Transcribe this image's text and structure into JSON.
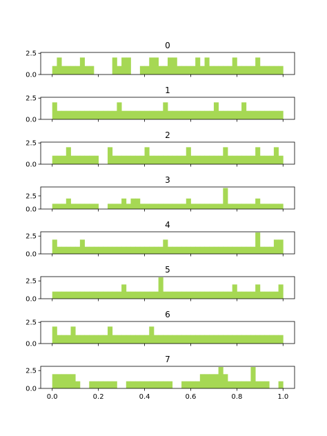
{
  "chart_data": {
    "type": "histogram",
    "layout": "8 stacked subplots sharing x-axis",
    "bar_color": "#a6d854",
    "bins": 50,
    "bin_range": [
      0.0,
      1.0
    ],
    "xlim": [
      -0.05,
      1.05
    ],
    "x_ticks": [
      0.0,
      0.2,
      0.4,
      0.6,
      0.8,
      1.0
    ],
    "x_tick_labels": [
      "0.0",
      "0.2",
      "0.4",
      "0.6",
      "0.8",
      "1.0"
    ],
    "grid": false,
    "subplots": [
      {
        "title": "0",
        "ylim": [
          0,
          2.6
        ],
        "y_ticks": [
          0.0,
          2.5
        ],
        "y_tick_labels": [
          "0.0",
          "2.5"
        ],
        "counts": [
          1,
          2,
          1,
          1,
          1,
          1,
          2,
          1,
          1,
          0,
          0,
          0,
          0,
          2,
          1,
          2,
          2,
          0,
          0,
          1,
          1,
          2,
          2,
          1,
          1,
          2,
          2,
          1,
          1,
          1,
          1,
          2,
          1,
          2,
          1,
          1,
          1,
          1,
          1,
          2,
          1,
          1,
          1,
          1,
          2,
          1,
          1,
          1,
          1,
          1
        ]
      },
      {
        "title": "1",
        "ylim": [
          0,
          2.6
        ],
        "y_ticks": [
          0.0,
          2.5
        ],
        "y_tick_labels": [
          "0.0",
          "2.5"
        ],
        "counts": [
          2,
          1,
          1,
          1,
          1,
          1,
          1,
          1,
          1,
          1,
          1,
          1,
          1,
          1,
          2,
          1,
          1,
          1,
          1,
          1,
          1,
          1,
          1,
          1,
          2,
          1,
          1,
          1,
          1,
          1,
          1,
          1,
          1,
          1,
          1,
          2,
          1,
          1,
          1,
          1,
          1,
          2,
          1,
          1,
          1,
          1,
          1,
          1,
          1,
          1
        ]
      },
      {
        "title": "2",
        "ylim": [
          0,
          2.6
        ],
        "y_ticks": [
          0.0,
          2.5
        ],
        "y_tick_labels": [
          "0.0",
          "2.5"
        ],
        "counts": [
          1,
          1,
          1,
          2,
          1,
          1,
          1,
          1,
          1,
          1,
          0,
          0,
          2,
          1,
          1,
          1,
          1,
          1,
          1,
          1,
          2,
          1,
          1,
          1,
          1,
          1,
          1,
          1,
          1,
          2,
          1,
          1,
          1,
          1,
          1,
          1,
          1,
          2,
          1,
          1,
          1,
          1,
          1,
          1,
          2,
          1,
          1,
          1,
          2,
          1
        ]
      },
      {
        "title": "3",
        "ylim": [
          0,
          4.2
        ],
        "y_ticks": [
          0.0,
          2.5
        ],
        "y_tick_labels": [
          "0.0",
          "2.5"
        ],
        "counts": [
          1,
          1,
          1,
          2,
          1,
          1,
          1,
          1,
          1,
          1,
          0,
          0,
          1,
          1,
          1,
          2,
          1,
          2,
          2,
          1,
          1,
          1,
          1,
          1,
          1,
          1,
          1,
          1,
          1,
          2,
          1,
          1,
          1,
          1,
          1,
          1,
          1,
          4,
          1,
          1,
          1,
          1,
          1,
          1,
          2,
          1,
          1,
          1,
          1,
          1
        ]
      },
      {
        "title": "4",
        "ylim": [
          0,
          3.1
        ],
        "y_ticks": [
          0.0,
          2.5
        ],
        "y_tick_labels": [
          "0.0",
          "2.5"
        ],
        "counts": [
          2,
          1,
          1,
          1,
          1,
          1,
          2,
          1,
          1,
          1,
          1,
          1,
          1,
          1,
          1,
          1,
          1,
          1,
          1,
          1,
          1,
          1,
          1,
          1,
          2,
          1,
          1,
          1,
          1,
          1,
          1,
          1,
          1,
          1,
          1,
          1,
          1,
          1,
          1,
          1,
          1,
          1,
          1,
          1,
          3,
          1,
          1,
          1,
          2,
          2
        ]
      },
      {
        "title": "5",
        "ylim": [
          0,
          3.1
        ],
        "y_ticks": [
          0.0,
          2.5
        ],
        "y_tick_labels": [
          "0.0",
          "2.5"
        ],
        "counts": [
          1,
          1,
          1,
          1,
          1,
          1,
          1,
          1,
          1,
          1,
          1,
          1,
          1,
          1,
          1,
          2,
          1,
          1,
          1,
          1,
          1,
          1,
          1,
          3,
          1,
          1,
          1,
          1,
          1,
          1,
          1,
          1,
          1,
          1,
          1,
          1,
          1,
          1,
          1,
          2,
          1,
          1,
          1,
          1,
          2,
          1,
          1,
          1,
          1,
          2
        ]
      },
      {
        "title": "6",
        "ylim": [
          0,
          2.6
        ],
        "y_ticks": [
          0.0,
          2.5
        ],
        "y_tick_labels": [
          "0.0",
          "2.5"
        ],
        "counts": [
          2,
          1,
          1,
          1,
          2,
          1,
          1,
          1,
          1,
          1,
          1,
          1,
          2,
          1,
          1,
          1,
          1,
          1,
          1,
          1,
          1,
          2,
          1,
          1,
          1,
          1,
          1,
          1,
          1,
          1,
          1,
          1,
          1,
          1,
          1,
          1,
          1,
          1,
          1,
          1,
          1,
          1,
          1,
          1,
          1,
          1,
          1,
          1,
          1,
          1
        ]
      },
      {
        "title": "7",
        "ylim": [
          0,
          3.1
        ],
        "y_ticks": [
          0.0,
          2.5
        ],
        "y_tick_labels": [
          "0.0",
          "2.5"
        ],
        "counts": [
          2,
          2,
          2,
          2,
          2,
          1,
          0,
          0,
          1,
          1,
          1,
          1,
          1,
          1,
          0,
          0,
          1,
          1,
          1,
          1,
          1,
          1,
          1,
          1,
          1,
          1,
          0,
          0,
          1,
          1,
          1,
          1,
          2,
          2,
          2,
          2,
          3,
          2,
          1,
          1,
          1,
          1,
          1,
          3,
          1,
          1,
          1,
          0,
          0,
          1
        ]
      }
    ]
  }
}
